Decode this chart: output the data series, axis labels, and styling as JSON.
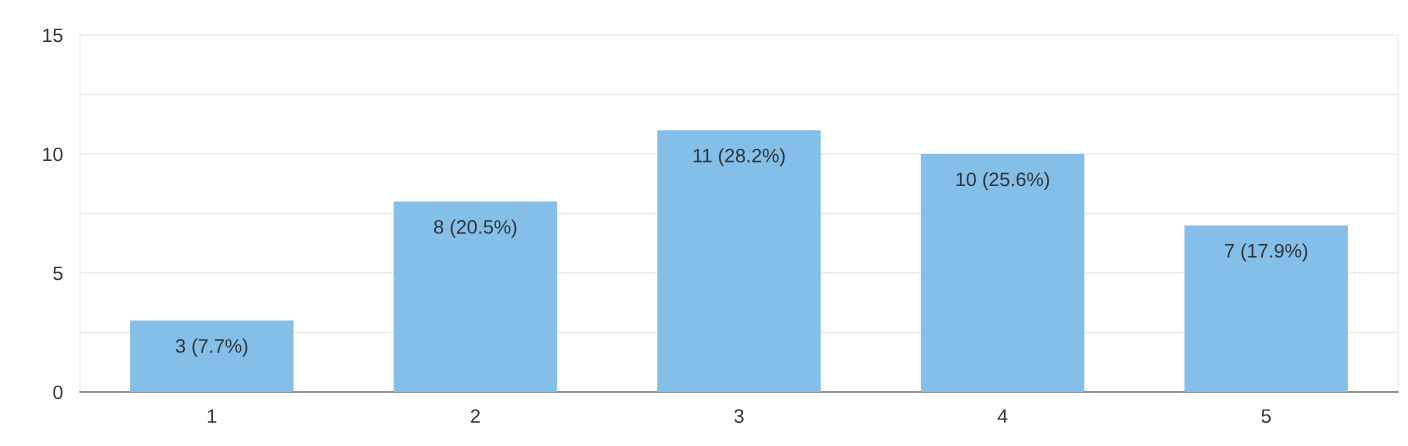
{
  "chart_data": {
    "type": "bar",
    "categories": [
      "1",
      "2",
      "3",
      "4",
      "5"
    ],
    "values": [
      3,
      8,
      11,
      10,
      7
    ],
    "color": "#83bfe8",
    "value_labels": [
      "3 (7.7%)",
      "8 (20.5%)",
      "11 (28.2%)",
      "10 (25.6%)",
      "7 (17.9%)"
    ],
    "ylim": [
      0,
      15
    ],
    "yticks": [
      0,
      {
        "value": 2.5,
        "label": null
      },
      5,
      {
        "value": 7.5,
        "label": null
      },
      10,
      {
        "value": 12.5,
        "label": null
      },
      15
    ],
    "grid": "y"
  }
}
